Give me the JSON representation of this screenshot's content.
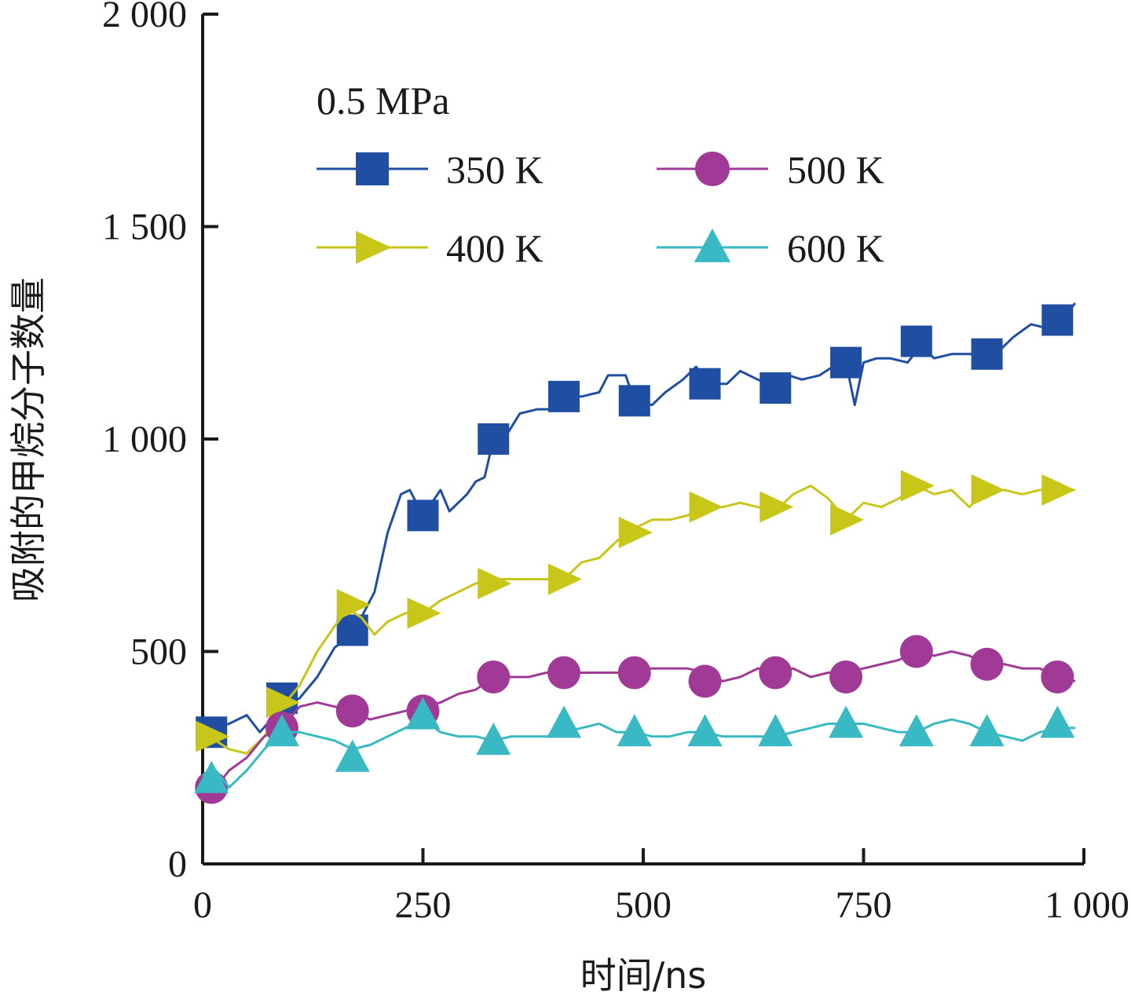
{
  "chart_data": {
    "type": "line",
    "title": "",
    "xlabel": "时间/ns",
    "ylabel": "吸附的甲烷分子数量",
    "xlim": [
      0,
      1000
    ],
    "ylim": [
      0,
      2000
    ],
    "x_ticks": [
      0,
      250,
      500,
      750,
      1000
    ],
    "x_tick_labels": [
      "0",
      "250",
      "500",
      "750",
      "1 000"
    ],
    "y_ticks": [
      0,
      500,
      1000,
      1500,
      2000
    ],
    "y_tick_labels": [
      "0",
      "500",
      "1 000",
      "1 500",
      "2 000"
    ],
    "grid": false,
    "legend_title": "0.5 MPa",
    "legend_placement": "top-left",
    "series": [
      {
        "name": "350 K",
        "color": "#1f4ea3",
        "marker": "square",
        "x": [
          0,
          15,
          30,
          50,
          65,
          90,
          110,
          130,
          150,
          165,
          180,
          195,
          210,
          225,
          235,
          250,
          270,
          280,
          300,
          310,
          320,
          330,
          345,
          360,
          380,
          400,
          410,
          430,
          450,
          460,
          480,
          490,
          510,
          525,
          545,
          560,
          575,
          595,
          610,
          630,
          650,
          665,
          680,
          700,
          715,
          730,
          740,
          750,
          765,
          780,
          800,
          815,
          830,
          850,
          870,
          890,
          905,
          920,
          940,
          960,
          975,
          990
        ],
        "y": [
          310,
          320,
          330,
          350,
          310,
          370,
          390,
          440,
          510,
          530,
          580,
          640,
          780,
          870,
          880,
          820,
          880,
          830,
          870,
          900,
          910,
          1000,
          1010,
          1060,
          1070,
          1070,
          1100,
          1100,
          1110,
          1150,
          1150,
          1090,
          1080,
          1110,
          1140,
          1170,
          1130,
          1130,
          1160,
          1140,
          1120,
          1150,
          1140,
          1150,
          1170,
          1180,
          1080,
          1180,
          1190,
          1190,
          1180,
          1220,
          1190,
          1200,
          1200,
          1200,
          1210,
          1240,
          1270,
          1260,
          1280,
          1320
        ],
        "marker_x": [
          10,
          90,
          170,
          250,
          330,
          410,
          490,
          570,
          650,
          730,
          810,
          890,
          970
        ],
        "marker_y": [
          310,
          390,
          550,
          820,
          1000,
          1100,
          1090,
          1130,
          1120,
          1180,
          1230,
          1200,
          1280
        ]
      },
      {
        "name": "400 K",
        "color": "#c8c619",
        "marker": "triangle-right",
        "x": [
          0,
          15,
          30,
          50,
          70,
          90,
          110,
          130,
          150,
          165,
          180,
          195,
          210,
          230,
          250,
          270,
          290,
          310,
          330,
          350,
          370,
          390,
          410,
          430,
          450,
          470,
          490,
          510,
          530,
          550,
          570,
          590,
          610,
          630,
          650,
          670,
          690,
          710,
          730,
          750,
          770,
          790,
          810,
          830,
          850,
          870,
          890,
          910,
          930,
          950,
          970,
          990
        ],
        "y": [
          300,
          290,
          270,
          260,
          300,
          370,
          420,
          500,
          560,
          600,
          580,
          540,
          570,
          590,
          590,
          620,
          640,
          660,
          670,
          670,
          670,
          670,
          670,
          710,
          720,
          760,
          790,
          810,
          810,
          820,
          840,
          840,
          850,
          840,
          830,
          870,
          890,
          860,
          810,
          850,
          840,
          860,
          890,
          870,
          880,
          840,
          880,
          880,
          870,
          880,
          880,
          880
        ],
        "marker_x": [
          10,
          90,
          170,
          250,
          330,
          410,
          490,
          570,
          650,
          730,
          810,
          890,
          970
        ],
        "marker_y": [
          300,
          380,
          610,
          590,
          660,
          670,
          780,
          840,
          840,
          810,
          890,
          880,
          880
        ]
      },
      {
        "name": "500 K",
        "color": "#a03a96",
        "marker": "circle",
        "x": [
          0,
          15,
          30,
          50,
          70,
          90,
          110,
          130,
          150,
          170,
          190,
          210,
          230,
          250,
          270,
          290,
          310,
          330,
          350,
          370,
          390,
          410,
          430,
          450,
          470,
          490,
          510,
          530,
          550,
          570,
          590,
          610,
          630,
          650,
          670,
          690,
          710,
          730,
          750,
          770,
          790,
          810,
          830,
          850,
          870,
          890,
          910,
          930,
          950,
          970,
          990
        ],
        "y": [
          170,
          180,
          220,
          250,
          300,
          320,
          370,
          380,
          370,
          360,
          340,
          350,
          360,
          370,
          380,
          400,
          410,
          440,
          440,
          440,
          450,
          450,
          450,
          450,
          450,
          450,
          460,
          460,
          460,
          450,
          430,
          440,
          460,
          450,
          460,
          440,
          450,
          450,
          460,
          470,
          480,
          500,
          490,
          500,
          490,
          470,
          470,
          460,
          460,
          440,
          430
        ],
        "marker_x": [
          10,
          90,
          170,
          250,
          330,
          410,
          490,
          570,
          650,
          730,
          810,
          890,
          970
        ],
        "marker_y": [
          180,
          320,
          360,
          360,
          440,
          450,
          450,
          430,
          450,
          440,
          500,
          470,
          440
        ]
      },
      {
        "name": "600 K",
        "color": "#39b9c4",
        "marker": "triangle-up",
        "x": [
          0,
          15,
          30,
          50,
          70,
          90,
          110,
          130,
          150,
          170,
          190,
          210,
          230,
          250,
          270,
          290,
          310,
          330,
          350,
          370,
          390,
          410,
          430,
          450,
          470,
          490,
          510,
          530,
          550,
          570,
          590,
          610,
          630,
          650,
          670,
          690,
          710,
          730,
          750,
          770,
          790,
          810,
          830,
          850,
          870,
          890,
          910,
          930,
          950,
          970,
          990
        ],
        "y": [
          210,
          220,
          180,
          220,
          270,
          310,
          310,
          300,
          290,
          270,
          280,
          300,
          320,
          340,
          310,
          300,
          300,
          290,
          300,
          300,
          300,
          310,
          320,
          330,
          310,
          310,
          300,
          300,
          310,
          310,
          300,
          300,
          300,
          300,
          310,
          320,
          330,
          330,
          330,
          320,
          310,
          310,
          330,
          340,
          330,
          310,
          300,
          290,
          310,
          320,
          320
        ],
        "marker_x": [
          10,
          90,
          170,
          250,
          330,
          410,
          490,
          570,
          650,
          730,
          810,
          890,
          970
        ],
        "marker_y": [
          200,
          310,
          250,
          350,
          290,
          330,
          310,
          310,
          310,
          330,
          310,
          310,
          330
        ]
      }
    ]
  }
}
